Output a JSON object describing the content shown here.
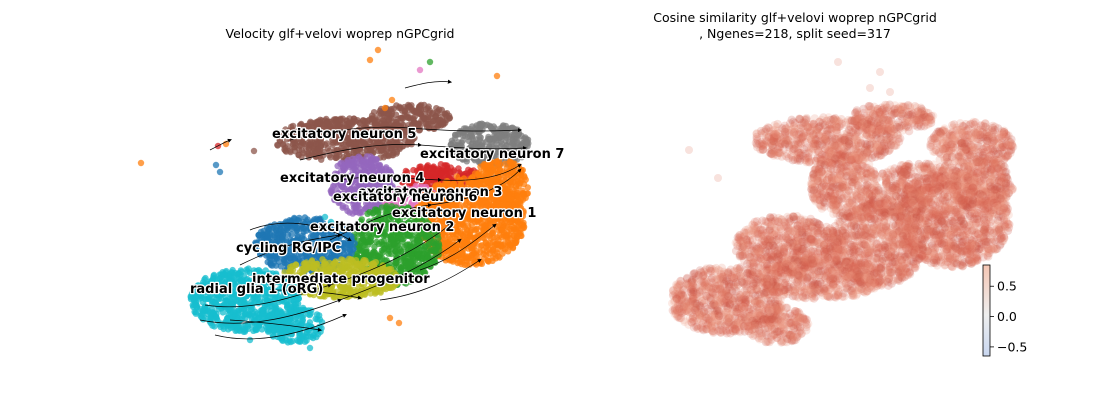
{
  "left_title": "Velocity glf+velovi woprep nGPCgrid",
  "right_title_line1": "Cosine similarity glf+velovi woprep nGPCgrid",
  "right_title_line2": ", Ngenes=218, split seed=317",
  "clusters": [
    {
      "name": "excitatory neuron 5",
      "color": "#8c564b"
    },
    {
      "name": "excitatory neuron 7",
      "color": "#7f7f7f"
    },
    {
      "name": "excitatory neuron 4",
      "color": "#9467bd"
    },
    {
      "name": "excitatory neuron 3",
      "color": "#d62728"
    },
    {
      "name": "excitatory neuron 6",
      "color": "#e377c2"
    },
    {
      "name": "excitatory neuron 1",
      "color": "#ff7f0e"
    },
    {
      "name": "excitatory neuron 2",
      "color": "#2ca02c"
    },
    {
      "name": "cycling RG/IPC",
      "color": "#1f77b4"
    },
    {
      "name": "intermediate progenitor",
      "color": "#bcbd22"
    },
    {
      "name": "radial glia 1 (oRG)",
      "color": "#17becf"
    }
  ],
  "chart_data": [
    {
      "type": "scatter",
      "title": "Velocity glf+velovi woprep nGPCgrid",
      "subtype": "embedding with velocity streamlines",
      "axes": "off",
      "labels": [
        "excitatory neuron 5",
        "excitatory neuron 7",
        "excitatory neuron 4",
        "excitatory neuron 3",
        "excitatory neuron 6",
        "excitatory neuron 1",
        "excitatory neuron 2",
        "cycling RG/IPC",
        "intermediate progenitor",
        "radial glia 1 (oRG)"
      ]
    },
    {
      "type": "scatter",
      "title": "Cosine similarity glf+velovi woprep nGPCgrid , Ngenes=218, split seed=317",
      "axes": "off",
      "colorbar": {
        "ticks": [
          0.5,
          0.0,
          -0.5
        ],
        "tick_labels": [
          "0.5",
          "0.0",
          "−0.5"
        ],
        "range": [
          -0.65,
          0.85
        ],
        "colormap": "coolwarm"
      }
    }
  ]
}
